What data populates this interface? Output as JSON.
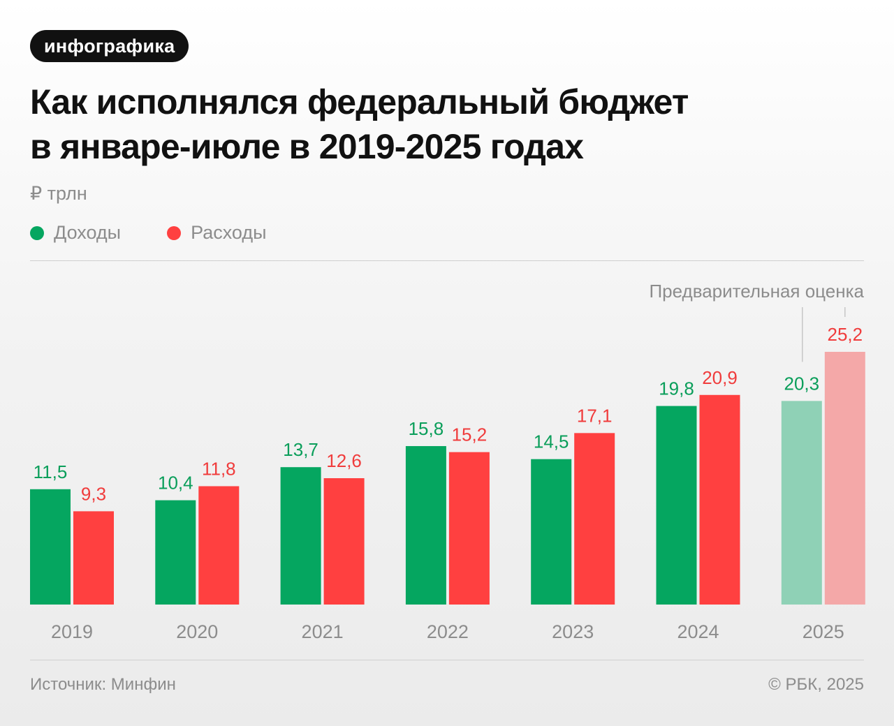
{
  "badge": "инфографика",
  "title_lines": [
    "Как исполнялся федеральный бюджет",
    "в январе-июле в 2019-2025 годах"
  ],
  "unit": "₽ трлн",
  "source": "Источник: Минфин",
  "copyright": "© РБК, 2025",
  "colors": {
    "income": "#05a660",
    "expense": "#ff4040",
    "income_light": "#8fd1b6",
    "expense_light": "#f4a8a8",
    "income_label": "#0a9e5a",
    "expense_label": "#f03c3c",
    "muted": "#8c8c8c"
  },
  "chart_data": {
    "type": "bar",
    "categories": [
      "2019",
      "2020",
      "2021",
      "2022",
      "2023",
      "2024",
      "2025"
    ],
    "series": [
      {
        "name": "Доходы",
        "values": [
          11.5,
          10.4,
          13.7,
          15.8,
          14.5,
          19.8,
          20.3
        ],
        "labels": [
          "11,5",
          "10,4",
          "13,7",
          "15,8",
          "14,5",
          "19,8",
          "20,3"
        ]
      },
      {
        "name": "Расходы",
        "values": [
          9.3,
          11.8,
          12.6,
          15.2,
          17.1,
          20.9,
          25.2
        ],
        "labels": [
          "9,3",
          "11,8",
          "12,6",
          "15,2",
          "17,1",
          "20,9",
          "25,2"
        ]
      }
    ],
    "ylim": [
      0,
      25.2
    ],
    "legend": "top-left",
    "grid": false,
    "annotation": {
      "text": "Предварительная оценка",
      "category": "2025"
    }
  }
}
